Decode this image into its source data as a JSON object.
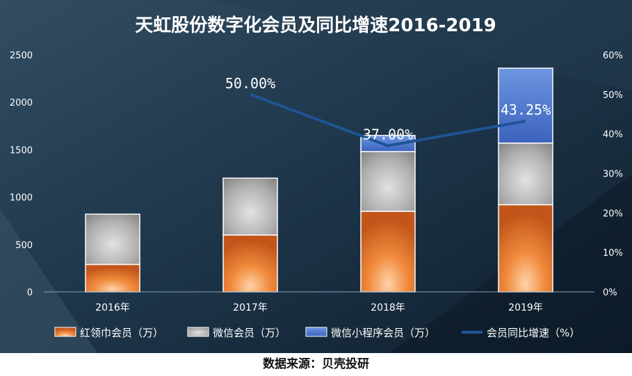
{
  "chart_data": {
    "type": "bar",
    "title": "天虹股份数字化会员及同比增速2016-2019",
    "categories": [
      "2016年",
      "2017年",
      "2018年",
      "2019年"
    ],
    "series": [
      {
        "name": "红领巾会员（万）",
        "values": [
          290,
          600,
          850,
          920
        ],
        "color": "#e8782a"
      },
      {
        "name": "微信会员（万）",
        "values": [
          530,
          600,
          630,
          650
        ],
        "color": "#a6a6a6"
      },
      {
        "name": "微信小程序会员（万）",
        "values": [
          0,
          0,
          170,
          790
        ],
        "color": "#4a72c8"
      }
    ],
    "line_series": {
      "name": "会员同比增速（%）",
      "categories": [
        "2017年",
        "2018年",
        "2019年"
      ],
      "values": [
        50.0,
        37.0,
        43.25
      ],
      "labels": [
        "50.00%",
        "37.00%",
        "43.25%"
      ],
      "color": "#1f5494"
    },
    "y_left": {
      "ticks": [
        "0",
        "500",
        "1000",
        "1500",
        "2000",
        "2500"
      ],
      "min": 0,
      "max": 2500
    },
    "y_right": {
      "ticks": [
        "0%",
        "10%",
        "20%",
        "30%",
        "40%",
        "50%",
        "60%"
      ],
      "min": 0,
      "max": 60
    },
    "legend_position": "bottom",
    "grid": false
  },
  "source": "数据来源：贝壳投研"
}
